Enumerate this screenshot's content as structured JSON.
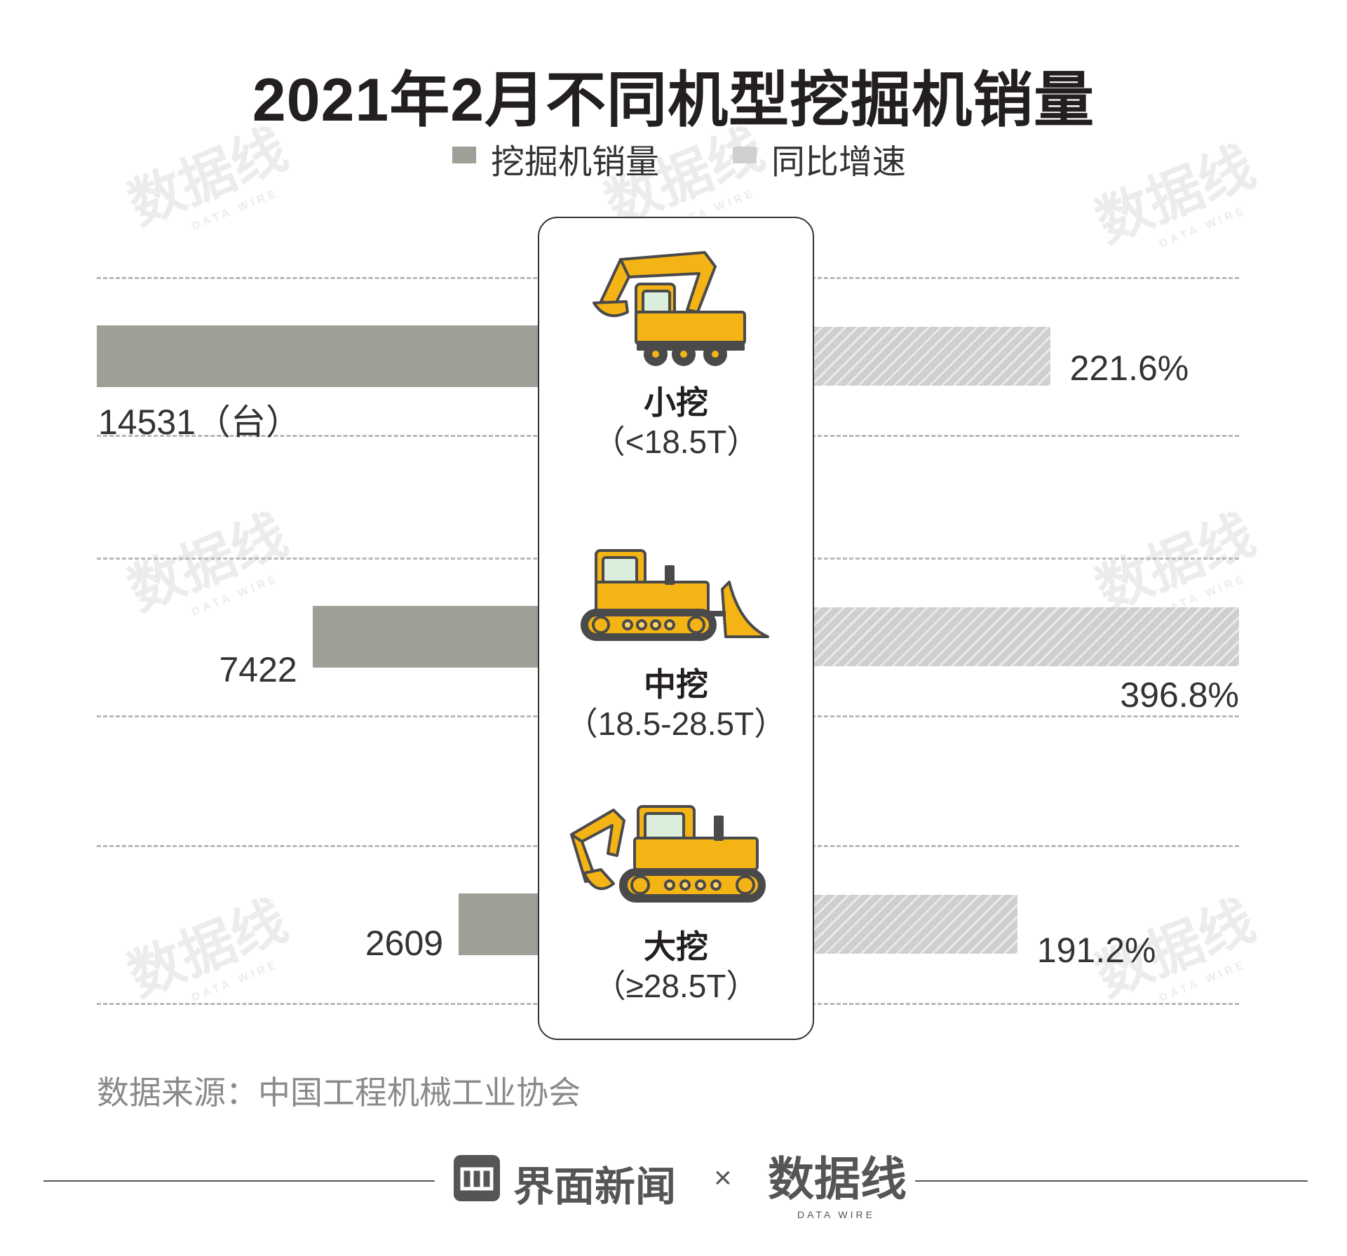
{
  "title": "2021年2月不同机型挖掘机销量",
  "legend": {
    "sales": "挖掘机销量",
    "growth": "同比增速"
  },
  "chart_data": {
    "type": "bar",
    "title": "2021年2月不同机型挖掘机销量",
    "categories": [
      "小挖",
      "中挖",
      "大挖"
    ],
    "category_ranges": [
      "（<18.5T）",
      "（18.5-28.5T）",
      "（≥28.5T）"
    ],
    "series": [
      {
        "name": "挖掘机销量",
        "values": [
          14531,
          7422,
          2609
        ],
        "labels": [
          "14531（台）",
          "7422",
          "2609"
        ],
        "color": "#a09f97",
        "direction": "left"
      },
      {
        "name": "同比增速",
        "values": [
          221.6,
          396.8,
          191.2
        ],
        "labels": [
          "221.6%",
          "396.8%",
          "191.2%"
        ],
        "color": "#cfcfcf",
        "direction": "right"
      }
    ],
    "grid": true,
    "legend_position": "top-center"
  },
  "source_note": "数据来源：中国工程机械工业协会",
  "footer": {
    "brand": "界面新闻",
    "times": "×",
    "partner": "数据线",
    "partner_sub": "DATA WIRE"
  },
  "watermark": {
    "text": "数据线",
    "sub": "DATA WIRE"
  },
  "colors": {
    "sales_bar": "#a09f97",
    "growth_bar": "#cfcfcf",
    "machine_yellow": "#f5b415",
    "machine_dark": "#4a4a4a"
  },
  "icons": [
    "small-excavator-icon",
    "bulldozer-icon",
    "large-excavator-icon",
    "jiemian-logo-icon"
  ]
}
